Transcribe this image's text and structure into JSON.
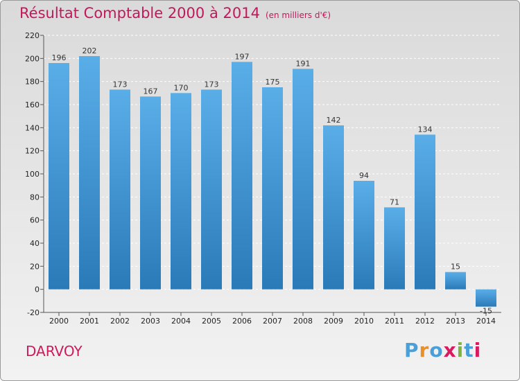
{
  "header": {
    "title": "Résultat Comptable 2000 à 2014",
    "subtitle": "(en milliers d'€)"
  },
  "footer": {
    "city": "DARVOY",
    "logo": [
      "P",
      "r",
      "o",
      "x",
      "i",
      "t",
      "i"
    ]
  },
  "colors": {
    "bar_top": "#5aaee8",
    "bar_bottom": "#2a7ab8",
    "title": "#c2185b",
    "logo": [
      "#4a9fd8",
      "#e8902a",
      "#4a9fd8",
      "#d81b60",
      "#7cb342",
      "#4a9fd8",
      "#d81b60"
    ]
  },
  "chart_data": {
    "type": "bar",
    "title": "Résultat Comptable 2000 à 2014",
    "subtitle": "(en milliers d'€)",
    "xlabel": "",
    "ylabel": "",
    "categories": [
      "2000",
      "2001",
      "2002",
      "2003",
      "2004",
      "2005",
      "2006",
      "2007",
      "2008",
      "2009",
      "2010",
      "2011",
      "2012",
      "2013",
      "2014"
    ],
    "values": [
      196,
      202,
      173,
      167,
      170,
      173,
      197,
      175,
      191,
      142,
      94,
      71,
      134,
      15,
      -15
    ],
    "ylim": [
      -20,
      220
    ],
    "yticks": [
      -20,
      0,
      20,
      40,
      60,
      80,
      100,
      120,
      140,
      160,
      180,
      200,
      220
    ],
    "grid": true,
    "legend": "none"
  }
}
